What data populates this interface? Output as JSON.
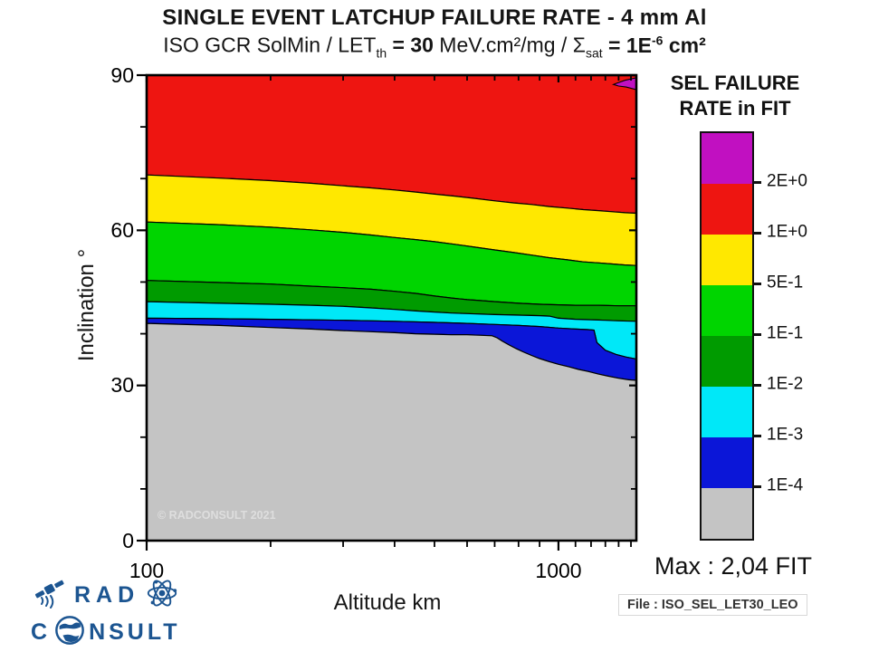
{
  "header": {
    "title": "SINGLE EVENT LATCHUP FAILURE RATE - 4 mm Al",
    "subtitle": {
      "p1": "ISO GCR SolMin / LET",
      "p1_sub": "th",
      "eq1": " = 30",
      "mid": " MeV.cm²/mg / Σ",
      "sigma_sub": "sat",
      "eq2": " = 1E",
      "exp2": "-6",
      "tail": " cm²"
    }
  },
  "axes": {
    "x": {
      "label": "Altitude km",
      "tick_labels": [
        "100",
        "1000"
      ]
    },
    "y": {
      "label": "Inclination °",
      "tick_labels": [
        "90",
        "60",
        "30",
        "0"
      ]
    }
  },
  "legend": {
    "title_line1": "SEL FAILURE",
    "title_line2": "RATE in FIT",
    "segment_colors": [
      "#c110c1",
      "#ee1511",
      "#ffe800",
      "#00d500",
      "#009b00",
      "#00e8f8",
      "#0b16d8",
      "#c4c4c4"
    ],
    "tick_labels": [
      "2E+0",
      "1E+0",
      "5E-1",
      "1E-1",
      "1E-2",
      "1E-3",
      "1E-4"
    ]
  },
  "annotations": {
    "max": "Max : 2,04 FIT",
    "file": "File : ISO_SEL_LET30_LEO",
    "watermark": "© RADCONSULT 2021"
  },
  "logo": {
    "word1": "RAD",
    "word2_prefix": "C",
    "word2_suffix": "NSULT",
    "color": "#1c5591"
  },
  "chart_data": {
    "type": "heatmap",
    "subtype": "filled-contour",
    "title": "SINGLE EVENT LATCHUP FAILURE RATE - 4 mm Al",
    "x": {
      "label": "Altitude km",
      "scale": "log",
      "min": 100,
      "max": 1546,
      "major_ticks": [
        100,
        1000
      ],
      "minor_ticks": [
        200,
        300,
        400,
        500,
        600,
        700,
        800,
        900,
        1100,
        1200,
        1300,
        1400,
        1500
      ]
    },
    "y": {
      "label": "Inclination °",
      "scale": "linear",
      "min": 0,
      "max": 90,
      "major_ticks": [
        90,
        60,
        30,
        0
      ],
      "minor_ticks": [
        10,
        20,
        40,
        50,
        70,
        80
      ]
    },
    "unit": "FIT",
    "max_value": "2,04",
    "levels": [
      "1E-4",
      "1E-3",
      "1E-2",
      "1E-1",
      "5E-1",
      "1E+0",
      "2E+0"
    ],
    "band_colors": [
      "#ee1511",
      "#ffe800",
      "#00d500",
      "#009b00",
      "#00e8f8",
      "#0b16d8",
      "#c4c4c4"
    ],
    "band_ranges": [
      "1E+0 to 2E+0",
      "5E-1 to 1E+0",
      "1E-1 to 5E-1",
      "1E-2 to 1E-1",
      "1E-3 to 1E-2",
      "1E-4 to 1E-3",
      "below 1E-4"
    ],
    "boundary_lines": [
      {
        "level": "1E+0",
        "points": [
          [
            100,
            70.7
          ],
          [
            150,
            70.1
          ],
          [
            200,
            69.6
          ],
          [
            250,
            69.1
          ],
          [
            300,
            68.6
          ],
          [
            350,
            68.2
          ],
          [
            400,
            67.8
          ],
          [
            450,
            67.4
          ],
          [
            500,
            67.0
          ],
          [
            560,
            66.6
          ],
          [
            620,
            66.2
          ],
          [
            700,
            65.7
          ],
          [
            780,
            65.3
          ],
          [
            860,
            65.0
          ],
          [
            950,
            64.6
          ],
          [
            1050,
            64.3
          ],
          [
            1150,
            64.0
          ],
          [
            1250,
            63.8
          ],
          [
            1350,
            63.6
          ],
          [
            1450,
            63.4
          ],
          [
            1546,
            63.3
          ]
        ]
      },
      {
        "level": "5E-1",
        "points": [
          [
            100,
            61.6
          ],
          [
            150,
            61.1
          ],
          [
            200,
            60.6
          ],
          [
            250,
            60.1
          ],
          [
            300,
            59.6
          ],
          [
            350,
            59.1
          ],
          [
            400,
            58.6
          ],
          [
            450,
            58.2
          ],
          [
            500,
            57.8
          ],
          [
            560,
            57.3
          ],
          [
            620,
            56.8
          ],
          [
            700,
            56.2
          ],
          [
            780,
            55.7
          ],
          [
            860,
            55.2
          ],
          [
            950,
            54.7
          ],
          [
            1050,
            54.3
          ],
          [
            1150,
            53.9
          ],
          [
            1250,
            53.7
          ],
          [
            1350,
            53.5
          ],
          [
            1450,
            53.3
          ],
          [
            1546,
            53.2
          ]
        ]
      },
      {
        "level": "1E-1",
        "points": [
          [
            100,
            50.3
          ],
          [
            150,
            49.9
          ],
          [
            200,
            49.6
          ],
          [
            250,
            49.2
          ],
          [
            300,
            48.9
          ],
          [
            350,
            48.6
          ],
          [
            400,
            48.2
          ],
          [
            450,
            47.8
          ],
          [
            500,
            47.3
          ],
          [
            550,
            46.9
          ],
          [
            600,
            46.6
          ],
          [
            650,
            46.4
          ],
          [
            700,
            46.2
          ],
          [
            800,
            45.9
          ],
          [
            900,
            45.7
          ],
          [
            1000,
            45.6
          ],
          [
            1100,
            45.5
          ],
          [
            1250,
            45.5
          ],
          [
            1400,
            45.4
          ],
          [
            1546,
            45.4
          ]
        ]
      },
      {
        "level": "1E-2",
        "points": [
          [
            100,
            46.2
          ],
          [
            150,
            45.9
          ],
          [
            200,
            45.7
          ],
          [
            250,
            45.5
          ],
          [
            300,
            45.3
          ],
          [
            350,
            45.0
          ],
          [
            400,
            44.7
          ],
          [
            450,
            44.4
          ],
          [
            500,
            44.2
          ],
          [
            550,
            44.0
          ],
          [
            600,
            43.9
          ],
          [
            700,
            43.7
          ],
          [
            800,
            43.6
          ],
          [
            900,
            43.5
          ],
          [
            950,
            43.4
          ],
          [
            1000,
            43.0
          ],
          [
            1100,
            42.8
          ],
          [
            1200,
            42.7
          ],
          [
            1300,
            42.6
          ],
          [
            1400,
            42.5
          ],
          [
            1546,
            42.4
          ]
        ]
      },
      {
        "level": "1E-3",
        "points": [
          [
            100,
            43.0
          ],
          [
            150,
            42.9
          ],
          [
            200,
            42.8
          ],
          [
            300,
            42.6
          ],
          [
            400,
            42.4
          ],
          [
            500,
            42.2
          ],
          [
            600,
            42.0
          ],
          [
            700,
            41.8
          ],
          [
            800,
            41.6
          ],
          [
            900,
            41.4
          ],
          [
            1000,
            41.1
          ],
          [
            1100,
            40.9
          ],
          [
            1180,
            40.8
          ],
          [
            1220,
            40.7
          ],
          [
            1240,
            38.3
          ],
          [
            1300,
            36.8
          ],
          [
            1380,
            36.0
          ],
          [
            1460,
            35.5
          ],
          [
            1546,
            35.1
          ]
        ]
      },
      {
        "level": "1E-4",
        "points": [
          [
            100,
            42.0
          ],
          [
            150,
            41.6
          ],
          [
            200,
            41.2
          ],
          [
            250,
            40.9
          ],
          [
            300,
            40.6
          ],
          [
            350,
            40.4
          ],
          [
            400,
            40.2
          ],
          [
            450,
            40.0
          ],
          [
            500,
            39.9
          ],
          [
            550,
            39.8
          ],
          [
            600,
            39.8
          ],
          [
            650,
            39.7
          ],
          [
            690,
            39.6
          ],
          [
            710,
            39.2
          ],
          [
            730,
            38.6
          ],
          [
            760,
            37.8
          ],
          [
            790,
            37.1
          ],
          [
            820,
            36.5
          ],
          [
            860,
            35.8
          ],
          [
            900,
            35.2
          ],
          [
            950,
            34.6
          ],
          [
            1000,
            34.1
          ],
          [
            1060,
            33.6
          ],
          [
            1120,
            33.1
          ],
          [
            1180,
            32.7
          ],
          [
            1250,
            32.2
          ],
          [
            1320,
            31.8
          ],
          [
            1400,
            31.4
          ],
          [
            1480,
            31.1
          ],
          [
            1546,
            31.0
          ]
        ]
      }
    ],
    "over_max_region": {
      "level": "above 2E+0",
      "color": "#c110c1",
      "points": [
        [
          1546,
          89.5
        ],
        [
          1450,
          89.0
        ],
        [
          1390,
          88.5
        ],
        [
          1360,
          88.2
        ],
        [
          1400,
          87.9
        ],
        [
          1460,
          87.7
        ],
        [
          1546,
          87.2
        ]
      ]
    },
    "legend_position": "right"
  }
}
